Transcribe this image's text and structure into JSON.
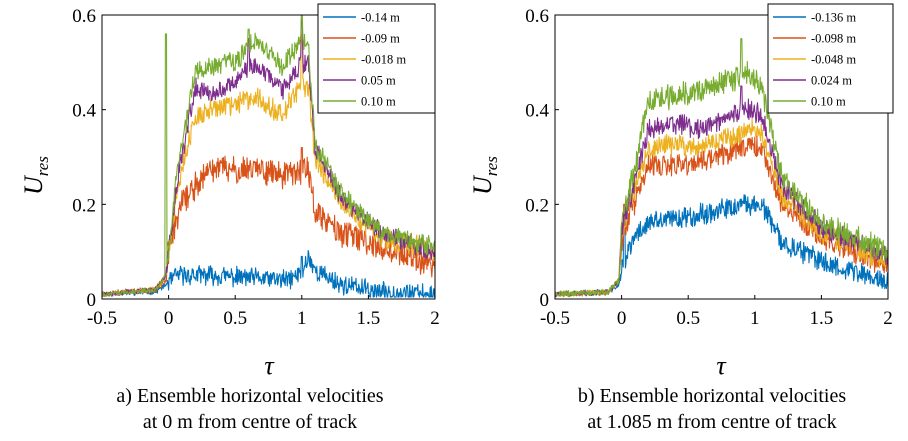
{
  "colors": [
    "#0072BD",
    "#D95319",
    "#EDB120",
    "#7E2F8E",
    "#77AC30"
  ],
  "chart_data": [
    {
      "type": "line",
      "xlabel": "τ",
      "ylabel": {
        "main": "U",
        "sub": "res"
      },
      "xlim": [
        -0.5,
        2
      ],
      "ylim": [
        0,
        0.6
      ],
      "xticks": [
        "-0.5",
        "0",
        "0.5",
        "1",
        "1.5",
        "2"
      ],
      "yticks": [
        "0",
        "0.2",
        "0.4",
        "0.6"
      ],
      "caption": [
        "a) Ensemble horizontal velocities",
        "at 0 m from centre of track"
      ],
      "legend_position": "top-right",
      "series": [
        {
          "name": "-0.14 m",
          "profile": [
            [
              -0.5,
              0.01
            ],
            [
              -0.1,
              0.015
            ],
            [
              -0.02,
              0.03
            ],
            [
              0.02,
              0.04
            ],
            [
              0.06,
              0.05
            ],
            [
              0.3,
              0.05
            ],
            [
              0.6,
              0.045
            ],
            [
              0.9,
              0.04
            ],
            [
              1.0,
              0.055
            ],
            [
              1.05,
              0.09
            ],
            [
              1.1,
              0.06
            ],
            [
              1.3,
              0.03
            ],
            [
              1.6,
              0.015
            ],
            [
              2.0,
              0.01
            ]
          ],
          "spikes": [
            [
              1.0,
              0.09
            ]
          ],
          "noise": 0.018
        },
        {
          "name": "-0.09 m",
          "profile": [
            [
              -0.5,
              0.01
            ],
            [
              -0.1,
              0.02
            ],
            [
              -0.02,
              0.04
            ],
            [
              0.0,
              0.1
            ],
            [
              0.04,
              0.15
            ],
            [
              0.1,
              0.2
            ],
            [
              0.2,
              0.24
            ],
            [
              0.35,
              0.28
            ],
            [
              0.5,
              0.27
            ],
            [
              0.65,
              0.28
            ],
            [
              0.85,
              0.26
            ],
            [
              1.0,
              0.27
            ],
            [
              1.05,
              0.28
            ],
            [
              1.1,
              0.18
            ],
            [
              1.3,
              0.14
            ],
            [
              1.6,
              0.11
            ],
            [
              2.0,
              0.07
            ]
          ],
          "spikes": [
            [
              1.0,
              0.32
            ]
          ],
          "noise": 0.025
        },
        {
          "name": "-0.018 m",
          "profile": [
            [
              -0.5,
              0.01
            ],
            [
              -0.1,
              0.02
            ],
            [
              -0.02,
              0.05
            ],
            [
              0.0,
              0.1
            ],
            [
              0.06,
              0.22
            ],
            [
              0.12,
              0.3
            ],
            [
              0.2,
              0.38
            ],
            [
              0.3,
              0.4
            ],
            [
              0.5,
              0.41
            ],
            [
              0.65,
              0.43
            ],
            [
              0.85,
              0.39
            ],
            [
              1.0,
              0.45
            ],
            [
              1.05,
              0.45
            ],
            [
              1.1,
              0.3
            ],
            [
              1.3,
              0.2
            ],
            [
              1.6,
              0.13
            ],
            [
              2.0,
              0.1
            ]
          ],
          "spikes": [
            [
              1.0,
              0.56
            ]
          ],
          "noise": 0.02
        },
        {
          "name": "0.05 m",
          "profile": [
            [
              -0.5,
              0.01
            ],
            [
              -0.1,
              0.02
            ],
            [
              -0.02,
              0.05
            ],
            [
              0.0,
              0.1
            ],
            [
              0.06,
              0.24
            ],
            [
              0.12,
              0.33
            ],
            [
              0.2,
              0.45
            ],
            [
              0.3,
              0.43
            ],
            [
              0.5,
              0.46
            ],
            [
              0.65,
              0.5
            ],
            [
              0.85,
              0.44
            ],
            [
              1.0,
              0.5
            ],
            [
              1.05,
              0.5
            ],
            [
              1.1,
              0.32
            ],
            [
              1.3,
              0.21
            ],
            [
              1.6,
              0.14
            ],
            [
              2.0,
              0.1
            ]
          ],
          "spikes": [
            [
              1.0,
              0.59
            ],
            [
              0.6,
              0.55
            ]
          ],
          "noise": 0.018
        },
        {
          "name": "0.10 m",
          "profile": [
            [
              -0.5,
              0.01
            ],
            [
              -0.1,
              0.02
            ],
            [
              -0.02,
              0.05
            ],
            [
              0.0,
              0.1
            ],
            [
              0.06,
              0.26
            ],
            [
              0.12,
              0.35
            ],
            [
              0.2,
              0.48
            ],
            [
              0.3,
              0.49
            ],
            [
              0.5,
              0.5
            ],
            [
              0.65,
              0.55
            ],
            [
              0.85,
              0.49
            ],
            [
              1.0,
              0.55
            ],
            [
              1.05,
              0.53
            ],
            [
              1.1,
              0.33
            ],
            [
              1.3,
              0.22
            ],
            [
              1.6,
              0.14
            ],
            [
              2.0,
              0.11
            ]
          ],
          "spikes": [
            [
              -0.02,
              0.56
            ],
            [
              1.0,
              0.6
            ],
            [
              0.6,
              0.57
            ]
          ],
          "noise": 0.018
        }
      ]
    },
    {
      "type": "line",
      "xlabel": "τ",
      "ylabel": {
        "main": "U",
        "sub": "res"
      },
      "xlim": [
        -0.5,
        2
      ],
      "ylim": [
        0,
        0.6
      ],
      "xticks": [
        "-0.5",
        "0",
        "0.5",
        "1",
        "1.5",
        "2"
      ],
      "yticks": [
        "0",
        "0.2",
        "0.4",
        "0.6"
      ],
      "caption": [
        "b) Ensemble horizontal velocities",
        "at 1.085 m from centre of track"
      ],
      "legend_position": "top-right",
      "series": [
        {
          "name": "-0.136 m",
          "profile": [
            [
              -0.5,
              0.01
            ],
            [
              -0.1,
              0.015
            ],
            [
              -0.02,
              0.03
            ],
            [
              0.0,
              0.06
            ],
            [
              0.05,
              0.1
            ],
            [
              0.12,
              0.14
            ],
            [
              0.2,
              0.16
            ],
            [
              0.4,
              0.17
            ],
            [
              0.6,
              0.18
            ],
            [
              0.8,
              0.19
            ],
            [
              0.95,
              0.2
            ],
            [
              1.05,
              0.2
            ],
            [
              1.2,
              0.12
            ],
            [
              1.5,
              0.08
            ],
            [
              2.0,
              0.035
            ]
          ],
          "spikes": [
            [
              0.02,
              0.18
            ]
          ],
          "noise": 0.02
        },
        {
          "name": "-0.098 m",
          "profile": [
            [
              -0.5,
              0.01
            ],
            [
              -0.1,
              0.015
            ],
            [
              -0.02,
              0.04
            ],
            [
              0.0,
              0.12
            ],
            [
              0.05,
              0.17
            ],
            [
              0.12,
              0.22
            ],
            [
              0.2,
              0.28
            ],
            [
              0.4,
              0.28
            ],
            [
              0.6,
              0.29
            ],
            [
              0.8,
              0.31
            ],
            [
              0.95,
              0.33
            ],
            [
              1.05,
              0.32
            ],
            [
              1.2,
              0.2
            ],
            [
              1.5,
              0.13
            ],
            [
              2.0,
              0.07
            ]
          ],
          "spikes": [
            [
              0.02,
              0.2
            ]
          ],
          "noise": 0.022
        },
        {
          "name": "-0.048 m",
          "profile": [
            [
              -0.5,
              0.01
            ],
            [
              -0.1,
              0.015
            ],
            [
              -0.02,
              0.04
            ],
            [
              0.0,
              0.14
            ],
            [
              0.05,
              0.19
            ],
            [
              0.12,
              0.25
            ],
            [
              0.2,
              0.32
            ],
            [
              0.4,
              0.33
            ],
            [
              0.6,
              0.32
            ],
            [
              0.8,
              0.34
            ],
            [
              0.95,
              0.36
            ],
            [
              1.05,
              0.35
            ],
            [
              1.2,
              0.22
            ],
            [
              1.5,
              0.14
            ],
            [
              2.0,
              0.08
            ]
          ],
          "spikes": [],
          "noise": 0.02
        },
        {
          "name": "0.024 m",
          "profile": [
            [
              -0.5,
              0.01
            ],
            [
              -0.1,
              0.015
            ],
            [
              -0.02,
              0.04
            ],
            [
              0.0,
              0.15
            ],
            [
              0.05,
              0.2
            ],
            [
              0.12,
              0.27
            ],
            [
              0.2,
              0.36
            ],
            [
              0.4,
              0.37
            ],
            [
              0.6,
              0.36
            ],
            [
              0.8,
              0.38
            ],
            [
              0.95,
              0.4
            ],
            [
              1.05,
              0.39
            ],
            [
              1.2,
              0.24
            ],
            [
              1.5,
              0.15
            ],
            [
              2.0,
              0.09
            ]
          ],
          "spikes": [
            [
              0.9,
              0.45
            ]
          ],
          "noise": 0.02
        },
        {
          "name": "0.10 m",
          "profile": [
            [
              -0.5,
              0.01
            ],
            [
              -0.1,
              0.015
            ],
            [
              -0.02,
              0.04
            ],
            [
              0.0,
              0.16
            ],
            [
              0.05,
              0.22
            ],
            [
              0.12,
              0.3
            ],
            [
              0.2,
              0.42
            ],
            [
              0.4,
              0.43
            ],
            [
              0.6,
              0.44
            ],
            [
              0.8,
              0.46
            ],
            [
              0.95,
              0.48
            ],
            [
              1.05,
              0.45
            ],
            [
              1.2,
              0.26
            ],
            [
              1.5,
              0.16
            ],
            [
              2.0,
              0.1
            ]
          ],
          "spikes": [
            [
              0.9,
              0.55
            ]
          ],
          "noise": 0.022
        }
      ]
    }
  ]
}
